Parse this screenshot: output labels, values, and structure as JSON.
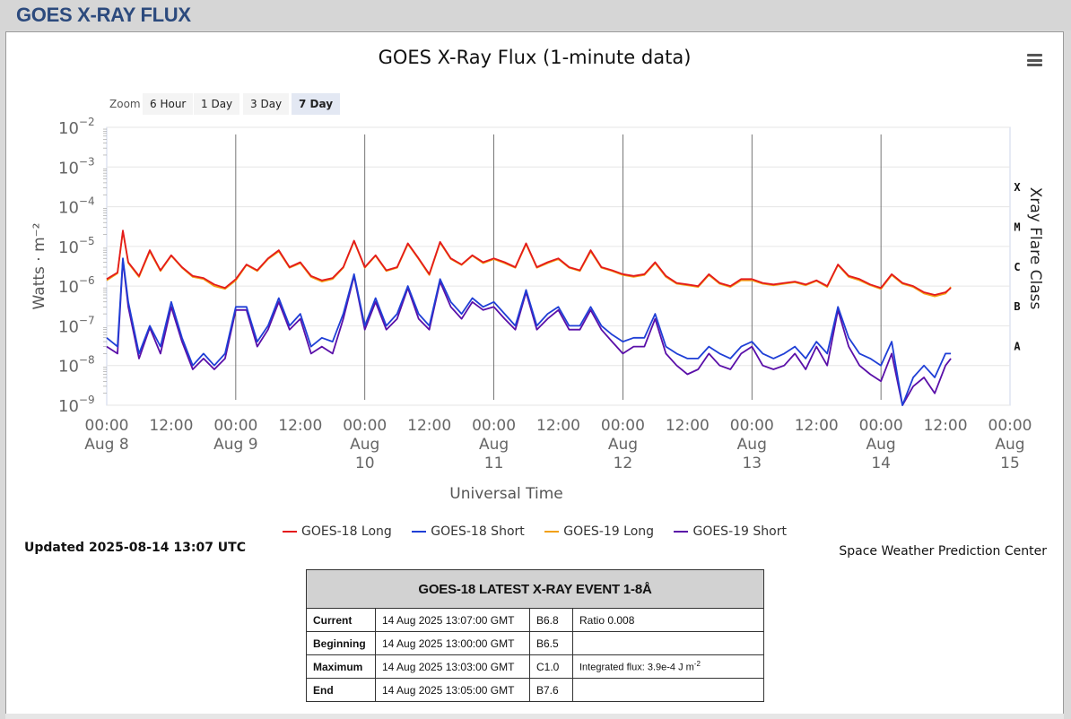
{
  "page": {
    "title": "GOES X-RAY FLUX"
  },
  "chart": {
    "title": "GOES X-Ray Flux (1-minute data)",
    "zoom_label": "Zoom",
    "zoom_options": [
      "6 Hour",
      "1 Day",
      "3 Day",
      "7 Day"
    ],
    "zoom_selected": "7 Day",
    "menu_icon": "hamburger-menu-icon"
  },
  "chart_data": {
    "type": "line",
    "title": "GOES X-Ray Flux (1-minute data)",
    "xlabel": "Universal Time",
    "ylabel": "Watts · m⁻²",
    "y2label": "Xray Flare Class",
    "yscale": "log",
    "ylim": [
      1e-09,
      0.01
    ],
    "y_ticks": [
      {
        "mantissa": "10",
        "exp": "−9"
      },
      {
        "mantissa": "10",
        "exp": "−8"
      },
      {
        "mantissa": "10",
        "exp": "−7"
      },
      {
        "mantissa": "10",
        "exp": "−6"
      },
      {
        "mantissa": "10",
        "exp": "−5"
      },
      {
        "mantissa": "10",
        "exp": "−4"
      },
      {
        "mantissa": "10",
        "exp": "−3"
      },
      {
        "mantissa": "10",
        "exp": "−2"
      }
    ],
    "flare_classes": [
      "A",
      "B",
      "C",
      "M",
      "X"
    ],
    "xlim": [
      "2025-08-08 00:00",
      "2025-08-15 00:00"
    ],
    "x_ticks": [
      {
        "time": "00:00",
        "date": "Aug 8"
      },
      {
        "time": "12:00",
        "date": ""
      },
      {
        "time": "00:00",
        "date": "Aug 9"
      },
      {
        "time": "12:00",
        "date": ""
      },
      {
        "time": "00:00",
        "date": "Aug 10"
      },
      {
        "time": "12:00",
        "date": ""
      },
      {
        "time": "00:00",
        "date": "Aug 11"
      },
      {
        "time": "12:00",
        "date": ""
      },
      {
        "time": "00:00",
        "date": "Aug 12"
      },
      {
        "time": "12:00",
        "date": ""
      },
      {
        "time": "00:00",
        "date": "Aug 13"
      },
      {
        "time": "12:00",
        "date": ""
      },
      {
        "time": "00:00",
        "date": "Aug 14"
      },
      {
        "time": "12:00",
        "date": ""
      },
      {
        "time": "00:00",
        "date": "Aug 15"
      }
    ],
    "x_hours": [
      0,
      2,
      3,
      4,
      6,
      8,
      10,
      12,
      14,
      16,
      18,
      20,
      22,
      24,
      26,
      28,
      30,
      32,
      34,
      36,
      38,
      40,
      42,
      44,
      46,
      48,
      50,
      52,
      54,
      56,
      58,
      60,
      62,
      64,
      66,
      68,
      70,
      72,
      74,
      76,
      78,
      80,
      82,
      84,
      86,
      88,
      90,
      92,
      94,
      96,
      98,
      100,
      102,
      104,
      106,
      108,
      110,
      112,
      114,
      116,
      118,
      120,
      122,
      124,
      126,
      128,
      130,
      132,
      134,
      136,
      138,
      140,
      142,
      144,
      146,
      148,
      150,
      152,
      154,
      156,
      157
    ],
    "series": [
      {
        "name": "GOES-18 Long",
        "color": "#e41a1c",
        "values": [
          1.5e-06,
          2.2e-06,
          2.5e-05,
          4e-06,
          1.8e-06,
          8e-06,
          2.5e-06,
          6e-06,
          3e-06,
          1.8e-06,
          1.6e-06,
          1.1e-06,
          9e-07,
          1.5e-06,
          3.5e-06,
          2.5e-06,
          5e-06,
          8e-06,
          3e-06,
          4e-06,
          1.8e-06,
          1.4e-06,
          1.6e-06,
          3e-06,
          1.4e-05,
          3e-06,
          6e-06,
          2.5e-06,
          3e-06,
          1.2e-05,
          5e-06,
          2e-06,
          1.3e-05,
          5e-06,
          3.5e-06,
          6e-06,
          4e-06,
          5e-06,
          4e-06,
          3e-06,
          1.2e-05,
          3e-06,
          4e-06,
          5e-06,
          3e-06,
          2.5e-06,
          8e-06,
          3e-06,
          2.5e-06,
          2e-06,
          1.8e-06,
          2e-06,
          4e-06,
          1.8e-06,
          1.2e-06,
          1.1e-06,
          1e-06,
          2e-06,
          1.2e-06,
          1e-06,
          1.5e-06,
          1.5e-06,
          1.2e-06,
          1.1e-06,
          1.2e-06,
          1.3e-06,
          1.1e-06,
          1.4e-06,
          1e-06,
          3.5e-06,
          1.8e-06,
          1.5e-06,
          1.1e-06,
          9e-07,
          2e-06,
          1.2e-06,
          1e-06,
          7e-07,
          6e-07,
          7e-07,
          9e-07
        ]
      },
      {
        "name": "GOES-18 Short",
        "color": "#1f3fd6",
        "values": [
          5e-08,
          3e-08,
          5e-06,
          4e-07,
          2e-08,
          1e-07,
          3e-08,
          4e-07,
          5e-08,
          1e-08,
          2e-08,
          1e-08,
          2e-08,
          3e-07,
          3e-07,
          4e-08,
          1e-07,
          5e-07,
          1e-07,
          2e-07,
          3e-08,
          5e-08,
          4e-08,
          2e-07,
          2e-06,
          1e-07,
          5e-07,
          1e-07,
          2e-07,
          1e-06,
          2e-07,
          1e-07,
          1.5e-06,
          4e-07,
          2e-07,
          5e-07,
          3e-07,
          4e-07,
          2e-07,
          1e-07,
          8e-07,
          1e-07,
          2e-07,
          3e-07,
          1e-07,
          1e-07,
          3e-07,
          1e-07,
          6e-08,
          4e-08,
          5e-08,
          5e-08,
          2e-07,
          3e-08,
          2e-08,
          1.5e-08,
          1.5e-08,
          3e-08,
          2e-08,
          1.5e-08,
          3e-08,
          4e-08,
          2e-08,
          1.5e-08,
          2e-08,
          3e-08,
          1.5e-08,
          4e-08,
          2e-08,
          3e-07,
          5e-08,
          2e-08,
          1.5e-08,
          1e-08,
          4e-08,
          1e-09,
          5e-09,
          1e-08,
          5e-09,
          2e-08,
          2e-08
        ]
      },
      {
        "name": "GOES-19 Long",
        "color": "#f2a012",
        "values": [
          1.4e-06,
          2.1e-06,
          2.4e-05,
          3.8e-06,
          1.7e-06,
          7.5e-06,
          2.4e-06,
          5.8e-06,
          2.9e-06,
          1.7e-06,
          1.5e-06,
          1e-06,
          8.5e-07,
          1.4e-06,
          3.4e-06,
          2.4e-06,
          4.8e-06,
          7.5e-06,
          2.9e-06,
          3.8e-06,
          1.7e-06,
          1.3e-06,
          1.5e-06,
          2.9e-06,
          1.35e-05,
          2.9e-06,
          5.8e-06,
          2.4e-06,
          2.9e-06,
          1.15e-05,
          4.8e-06,
          1.9e-06,
          1.25e-05,
          4.8e-06,
          3.4e-06,
          5.8e-06,
          3.8e-06,
          4.8e-06,
          3.8e-06,
          2.9e-06,
          1.15e-05,
          2.9e-06,
          3.8e-06,
          4.8e-06,
          2.9e-06,
          2.4e-06,
          7.5e-06,
          2.9e-06,
          2.4e-06,
          1.9e-06,
          1.7e-06,
          1.9e-06,
          3.8e-06,
          1.7e-06,
          1.15e-06,
          1.05e-06,
          9.5e-07,
          1.9e-06,
          1.15e-06,
          9.5e-07,
          1.4e-06,
          1.4e-06,
          1.15e-06,
          1.05e-06,
          1.15e-06,
          1.25e-06,
          1.05e-06,
          1.35e-06,
          9.5e-07,
          3.4e-06,
          1.7e-06,
          1.4e-06,
          1.05e-06,
          8.5e-07,
          1.9e-06,
          1.15e-06,
          9.5e-07,
          6.5e-07,
          5.5e-07,
          6.5e-07,
          9.5e-07
        ]
      },
      {
        "name": "GOES-19 Short",
        "color": "#5a0fa8",
        "values": [
          3e-08,
          2e-08,
          4.5e-06,
          3e-07,
          1.5e-08,
          9e-08,
          2e-08,
          3e-07,
          4e-08,
          8e-09,
          1.5e-08,
          8e-09,
          1.5e-08,
          2.5e-07,
          2.5e-07,
          3e-08,
          8e-08,
          4e-07,
          8e-08,
          1.5e-07,
          2e-08,
          3e-08,
          2e-08,
          1.5e-07,
          1.8e-06,
          8e-08,
          4e-07,
          8e-08,
          1.5e-07,
          9e-07,
          1.5e-07,
          8e-08,
          1.3e-06,
          3e-07,
          1.5e-07,
          4e-07,
          2.5e-07,
          3e-07,
          1.5e-07,
          8e-08,
          7e-07,
          8e-08,
          1.5e-07,
          2.5e-07,
          8e-08,
          8e-08,
          2.5e-07,
          8e-08,
          4e-08,
          2e-08,
          3e-08,
          3e-08,
          1.5e-07,
          2e-08,
          1e-08,
          6e-09,
          8e-09,
          2e-08,
          1e-08,
          8e-09,
          2e-08,
          3e-08,
          1e-08,
          8e-09,
          1e-08,
          2e-08,
          8e-09,
          3e-08,
          1e-08,
          2.5e-07,
          3e-08,
          1e-08,
          6e-09,
          4e-09,
          2e-08,
          1e-09,
          3e-09,
          5e-09,
          2e-09,
          1e-08,
          1.5e-08
        ]
      }
    ]
  },
  "legend": {
    "items": [
      {
        "label": "GOES-18 Long",
        "color": "#e41a1c"
      },
      {
        "label": "GOES-18 Short",
        "color": "#1f3fd6"
      },
      {
        "label": "GOES-19 Long",
        "color": "#f2a012"
      },
      {
        "label": "GOES-19 Short",
        "color": "#5a0fa8"
      }
    ]
  },
  "footer": {
    "updated": "Updated 2025-08-14 13:07 UTC",
    "credit": "Space Weather Prediction Center"
  },
  "event_table": {
    "heading": "GOES-18 LATEST X-RAY EVENT 1-8Å",
    "rows": [
      {
        "label": "Current",
        "time": "14 Aug 2025 13:07:00 GMT",
        "class": "B6.8",
        "extra": "Ratio 0.008"
      },
      {
        "label": "Beginning",
        "time": "14 Aug 2025 13:00:00 GMT",
        "class": "B6.5",
        "extra": ""
      },
      {
        "label": "Maximum",
        "time": "14 Aug 2025 13:03:00 GMT",
        "class": "C1.0",
        "extra": "Integrated flux: 3.9e-4 J m",
        "extra_sup": "-2"
      },
      {
        "label": "End",
        "time": "14 Aug 2025 13:05:00 GMT",
        "class": "B7.6",
        "extra": ""
      }
    ]
  }
}
